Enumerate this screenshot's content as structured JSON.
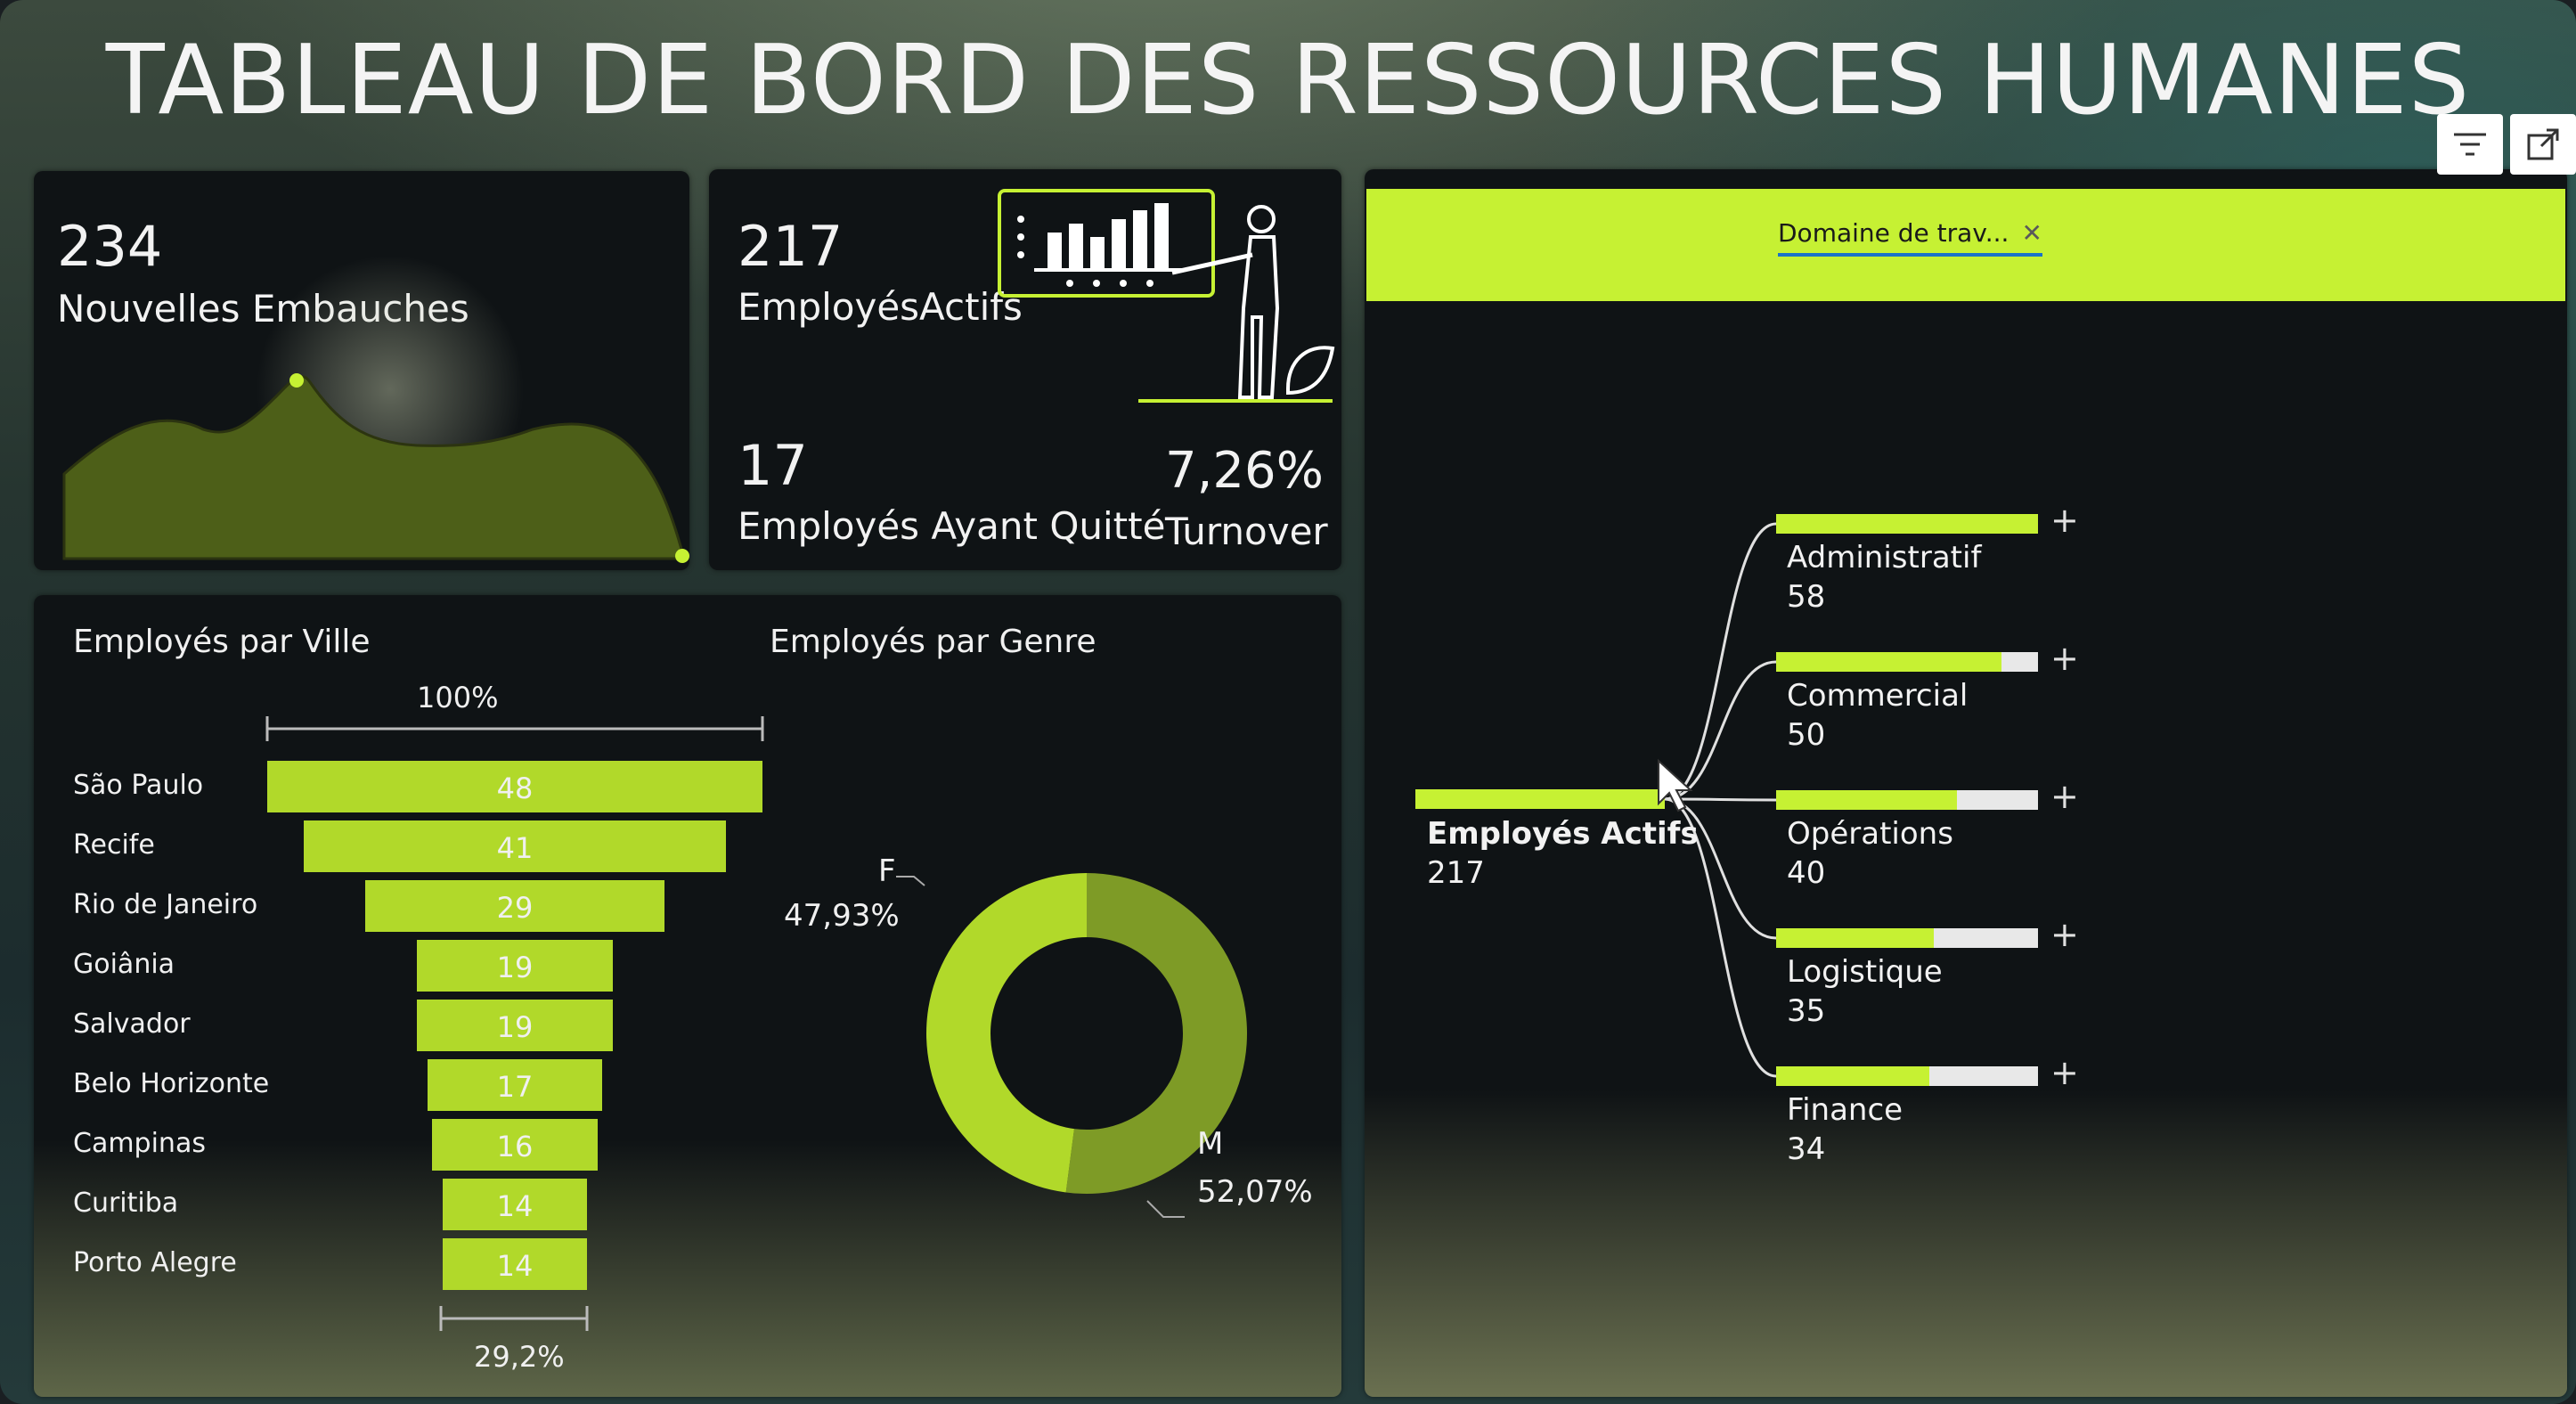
{
  "title": "TABLEAU DE BORD DES RESSOURCES HUMANES",
  "colors": {
    "accent": "#c6f133",
    "bar": "#b1d92a",
    "donut_dark": "#7e9b26",
    "panel": "#0f1315"
  },
  "kpis": {
    "new_hires": {
      "value": "234",
      "label": "Nouvelles Embauches"
    },
    "active": {
      "value": "217",
      "label": "EmployésActifs"
    },
    "left": {
      "value": "17",
      "label": "Employés Ayant Quitté"
    },
    "turnover": {
      "value": "7,26%",
      "label": "Turnover"
    }
  },
  "city_chart": {
    "title": "Employés par Ville",
    "top_label": "100%",
    "bottom_label": "29,2%",
    "rows": [
      {
        "city": "São Paulo",
        "value": 48
      },
      {
        "city": "Recife",
        "value": 41
      },
      {
        "city": "Rio de Janeiro",
        "value": 29
      },
      {
        "city": "Goiânia",
        "value": 19
      },
      {
        "city": "Salvador",
        "value": 19
      },
      {
        "city": "Belo Horizonte",
        "value": 17
      },
      {
        "city": "Campinas",
        "value": 16
      },
      {
        "city": "Curitiba",
        "value": 14
      },
      {
        "city": "Porto Alegre",
        "value": 14
      }
    ]
  },
  "gender_chart": {
    "title": "Employés par Genre",
    "f_label": "F",
    "f_value": "47,93%",
    "m_label": "M",
    "m_value": "52,07%"
  },
  "chart_data": [
    {
      "type": "bar",
      "title": "Employés par Ville",
      "categories": [
        "São Paulo",
        "Recife",
        "Rio de Janeiro",
        "Goiânia",
        "Salvador",
        "Belo Horizonte",
        "Campinas",
        "Curitiba",
        "Porto Alegre"
      ],
      "values": [
        48,
        41,
        29,
        19,
        19,
        17,
        16,
        14,
        14
      ]
    },
    {
      "type": "pie",
      "title": "Employés par Genre",
      "categories": [
        "F",
        "M"
      ],
      "values": [
        47.93,
        52.07
      ]
    },
    {
      "type": "bar",
      "categories": [
        "Administratif",
        "Commercial",
        "Opérations",
        "Logistique",
        "Finance"
      ],
      "values": [
        58,
        50,
        40,
        35,
        34
      ]
    }
  ],
  "decomposition": {
    "filter_chip": "Domaine de trav...",
    "root_label": "Employés Actifs",
    "root_value": "217",
    "branches": [
      {
        "label": "Administratif",
        "value": "58",
        "fill": 1.0
      },
      {
        "label": "Commercial",
        "value": "50",
        "fill": 0.862
      },
      {
        "label": "Opérations",
        "value": "40",
        "fill": 0.69
      },
      {
        "label": "Logistique",
        "value": "35",
        "fill": 0.603
      },
      {
        "label": "Finance",
        "value": "34",
        "fill": 0.586
      }
    ],
    "plus": "+"
  }
}
